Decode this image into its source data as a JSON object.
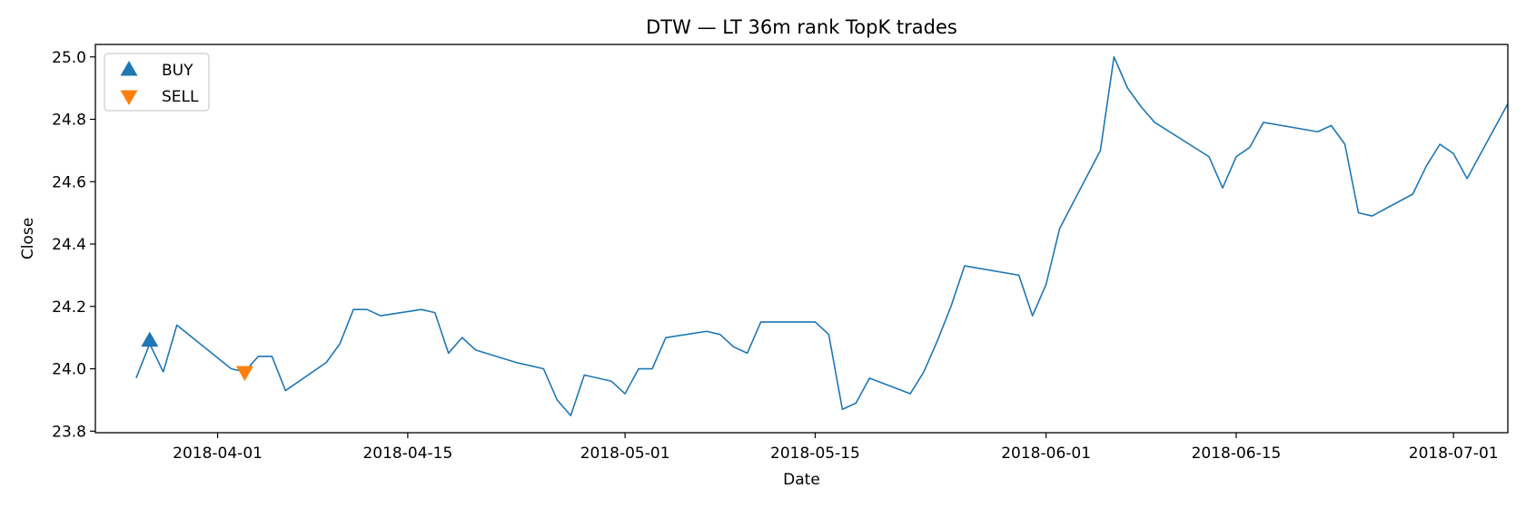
{
  "chart_data": {
    "type": "line",
    "title": "DTW — LT 36m rank TopK trades",
    "xlabel": "Date",
    "ylabel": "Close",
    "xlim": [
      "2018-03-23",
      "2018-07-05"
    ],
    "ylim": [
      23.795,
      25.04
    ],
    "x_ticks": [
      "2018-04-01",
      "2018-04-15",
      "2018-05-01",
      "2018-05-15",
      "2018-06-01",
      "2018-06-15",
      "2018-07-01"
    ],
    "y_ticks": [
      23.8,
      24.0,
      24.2,
      24.4,
      24.6,
      24.8,
      25.0
    ],
    "y_tick_labels": [
      "23.8",
      "24.0",
      "24.2",
      "24.4",
      "24.6",
      "24.8",
      "25.0"
    ],
    "grid": false,
    "legend_position": "top-left",
    "series": [
      {
        "color": "#1f77b4",
        "points": [
          [
            "2018-03-26",
            23.97
          ],
          [
            "2018-03-27",
            24.08
          ],
          [
            "2018-03-28",
            23.99
          ],
          [
            "2018-03-29",
            24.14
          ],
          [
            "2018-04-02",
            24.0
          ],
          [
            "2018-04-03",
            23.99
          ],
          [
            "2018-04-04",
            24.04
          ],
          [
            "2018-04-05",
            24.04
          ],
          [
            "2018-04-06",
            23.93
          ],
          [
            "2018-04-09",
            24.02
          ],
          [
            "2018-04-10",
            24.08
          ],
          [
            "2018-04-11",
            24.19
          ],
          [
            "2018-04-12",
            24.19
          ],
          [
            "2018-04-13",
            24.17
          ],
          [
            "2018-04-16",
            24.19
          ],
          [
            "2018-04-17",
            24.18
          ],
          [
            "2018-04-18",
            24.05
          ],
          [
            "2018-04-19",
            24.1
          ],
          [
            "2018-04-20",
            24.06
          ],
          [
            "2018-04-23",
            24.02
          ],
          [
            "2018-04-24",
            24.01
          ],
          [
            "2018-04-25",
            24.0
          ],
          [
            "2018-04-26",
            23.9
          ],
          [
            "2018-04-27",
            23.85
          ],
          [
            "2018-04-28",
            23.98
          ],
          [
            "2018-04-30",
            23.96
          ],
          [
            "2018-05-01",
            23.92
          ],
          [
            "2018-05-02",
            24.0
          ],
          [
            "2018-05-03",
            24.0
          ],
          [
            "2018-05-04",
            24.1
          ],
          [
            "2018-05-07",
            24.12
          ],
          [
            "2018-05-08",
            24.11
          ],
          [
            "2018-05-09",
            24.07
          ],
          [
            "2018-05-10",
            24.05
          ],
          [
            "2018-05-11",
            24.15
          ],
          [
            "2018-05-14",
            24.15
          ],
          [
            "2018-05-15",
            24.15
          ],
          [
            "2018-05-16",
            24.11
          ],
          [
            "2018-05-17",
            23.87
          ],
          [
            "2018-05-18",
            23.89
          ],
          [
            "2018-05-19",
            23.97
          ],
          [
            "2018-05-22",
            23.92
          ],
          [
            "2018-05-23",
            23.99
          ],
          [
            "2018-05-24",
            24.09
          ],
          [
            "2018-05-25",
            24.2
          ],
          [
            "2018-05-26",
            24.33
          ],
          [
            "2018-05-30",
            24.3
          ],
          [
            "2018-05-31",
            24.17
          ],
          [
            "2018-06-01",
            24.27
          ],
          [
            "2018-06-02",
            24.45
          ],
          [
            "2018-06-05",
            24.7
          ],
          [
            "2018-06-06",
            25.0
          ],
          [
            "2018-06-07",
            24.9
          ],
          [
            "2018-06-08",
            24.84
          ],
          [
            "2018-06-09",
            24.79
          ],
          [
            "2018-06-13",
            24.68
          ],
          [
            "2018-06-14",
            24.58
          ],
          [
            "2018-06-15",
            24.68
          ],
          [
            "2018-06-16",
            24.71
          ],
          [
            "2018-06-17",
            24.79
          ],
          [
            "2018-06-21",
            24.76
          ],
          [
            "2018-06-22",
            24.78
          ],
          [
            "2018-06-23",
            24.72
          ],
          [
            "2018-06-24",
            24.5
          ],
          [
            "2018-06-25",
            24.49
          ],
          [
            "2018-06-28",
            24.56
          ],
          [
            "2018-06-29",
            24.65
          ],
          [
            "2018-06-30",
            24.72
          ],
          [
            "2018-07-01",
            24.69
          ],
          [
            "2018-07-02",
            24.61
          ],
          [
            "2018-07-05",
            24.85
          ]
        ]
      }
    ],
    "trades": [
      {
        "label": "BUY",
        "date": "2018-03-27",
        "value": 24.09,
        "marker": "triangle-up",
        "color": "#1f77b4"
      },
      {
        "label": "SELL",
        "date": "2018-04-03",
        "value": 23.99,
        "marker": "triangle-down",
        "color": "#ff7f0e"
      }
    ],
    "legend": [
      "BUY",
      "SELL"
    ]
  }
}
